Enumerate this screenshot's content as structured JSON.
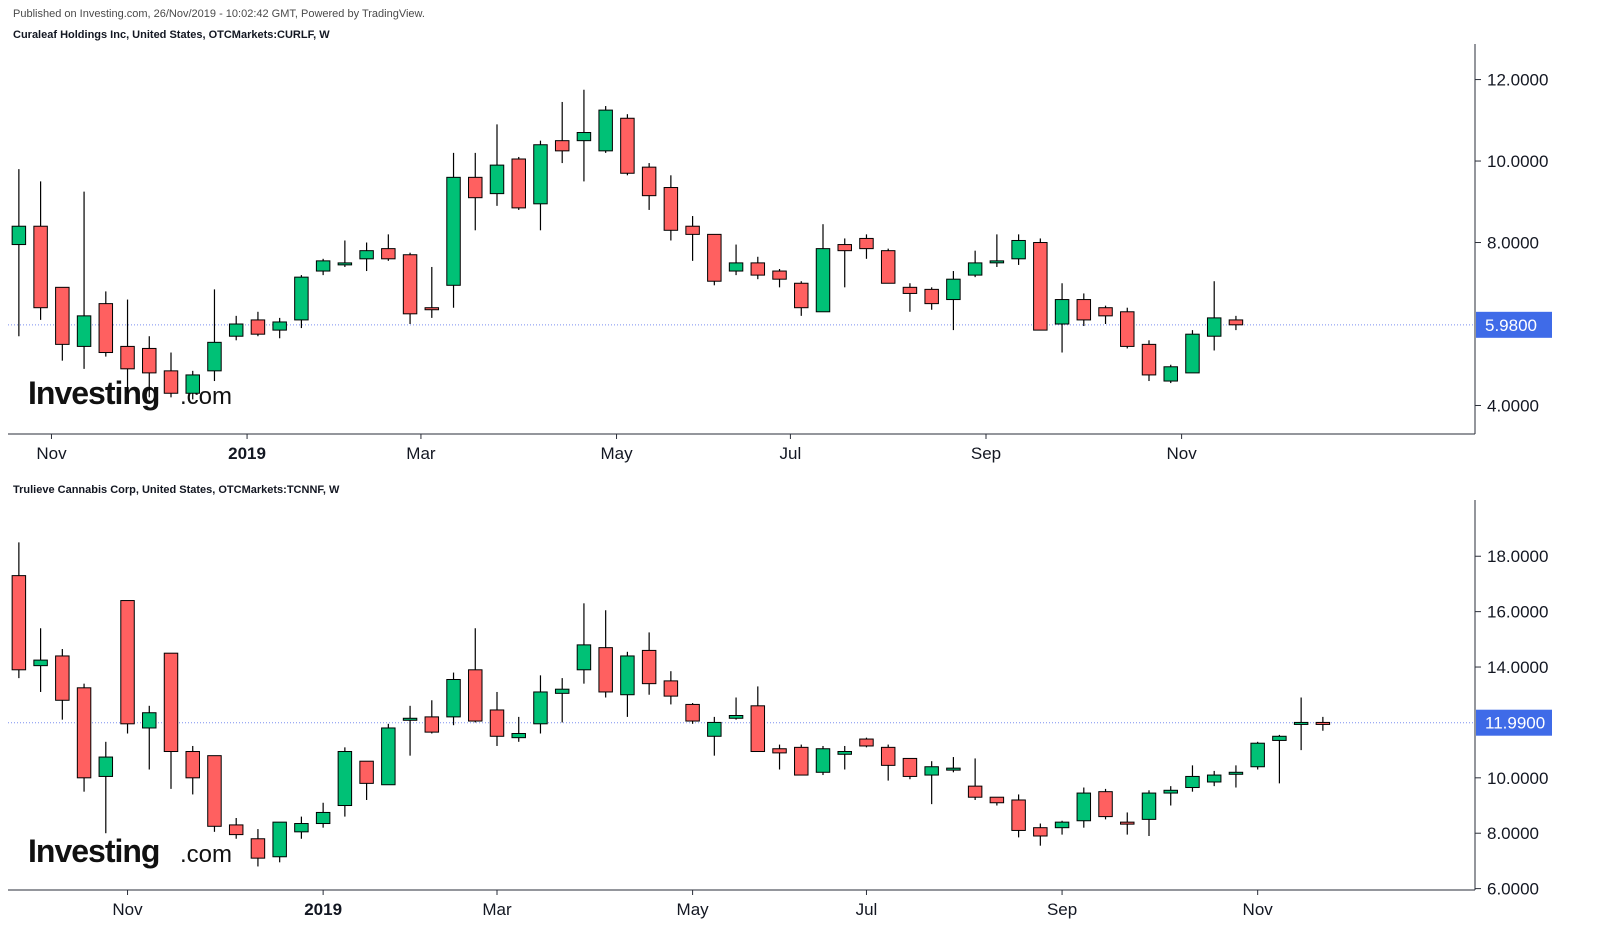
{
  "published": "Published on Investing.com, 26/Nov/2019 - 10:02:42 GMT, Powered by TradingView.",
  "brand": {
    "logo_word": "Investing",
    "logo_suffix": ".com",
    "logo_dot_color": "#f4a91d"
  },
  "colors": {
    "up": "#00c176",
    "down": "#ff6060",
    "wick": "#000000",
    "price_line": "#7b8ff0",
    "price_tag": "#3f6be8"
  },
  "chart_data": [
    {
      "type": "candlestick",
      "title": "Curaleaf Holdings Inc, United States, OTCMarkets:CURLF, W",
      "ylim": [
        3.3,
        12.75
      ],
      "yticks": [
        "4.0000",
        "8.0000",
        "10.0000",
        "12.0000"
      ],
      "ytick_values": [
        4,
        8,
        10,
        12
      ],
      "current_price": 5.98,
      "current_price_label": "5.9800",
      "xlabels": [
        {
          "label": "Nov",
          "index": 1.5,
          "bold": false
        },
        {
          "label": "2019",
          "index": 10.5,
          "bold": true
        },
        {
          "label": "Mar",
          "index": 18.5,
          "bold": false
        },
        {
          "label": "May",
          "index": 27.5,
          "bold": false
        },
        {
          "label": "Jul",
          "index": 35.5,
          "bold": false
        },
        {
          "label": "Sep",
          "index": 44.5,
          "bold": false
        },
        {
          "label": "Nov",
          "index": 53.5,
          "bold": false
        }
      ],
      "x_count": 67.5,
      "candles": [
        {
          "o": 7.95,
          "h": 9.8,
          "l": 5.7,
          "c": 8.4
        },
        {
          "o": 8.4,
          "h": 9.5,
          "l": 6.1,
          "c": 6.4
        },
        {
          "o": 6.9,
          "h": 6.9,
          "l": 5.1,
          "c": 5.5
        },
        {
          "o": 5.45,
          "h": 9.25,
          "l": 4.9,
          "c": 6.2
        },
        {
          "o": 6.5,
          "h": 6.8,
          "l": 5.2,
          "c": 5.3
        },
        {
          "o": 5.45,
          "h": 6.6,
          "l": 4.3,
          "c": 4.9
        },
        {
          "o": 5.4,
          "h": 5.7,
          "l": 4.2,
          "c": 4.8
        },
        {
          "o": 4.85,
          "h": 5.3,
          "l": 4.2,
          "c": 4.3
        },
        {
          "o": 4.3,
          "h": 4.85,
          "l": 4.15,
          "c": 4.75
        },
        {
          "o": 4.85,
          "h": 6.85,
          "l": 4.6,
          "c": 5.55
        },
        {
          "o": 5.7,
          "h": 6.2,
          "l": 5.6,
          "c": 6.0
        },
        {
          "o": 6.1,
          "h": 6.3,
          "l": 5.7,
          "c": 5.75
        },
        {
          "o": 5.85,
          "h": 6.15,
          "l": 5.65,
          "c": 6.05
        },
        {
          "o": 6.1,
          "h": 7.2,
          "l": 5.9,
          "c": 7.15
        },
        {
          "o": 7.3,
          "h": 7.6,
          "l": 7.2,
          "c": 7.55
        },
        {
          "o": 7.5,
          "h": 8.05,
          "l": 7.4,
          "c": 7.5
        },
        {
          "o": 7.6,
          "h": 8.0,
          "l": 7.3,
          "c": 7.8
        },
        {
          "o": 7.85,
          "h": 8.2,
          "l": 7.55,
          "c": 7.6
        },
        {
          "o": 7.7,
          "h": 7.75,
          "l": 6.0,
          "c": 6.25
        },
        {
          "o": 6.4,
          "h": 7.4,
          "l": 6.15,
          "c": 6.35
        },
        {
          "o": 6.95,
          "h": 10.2,
          "l": 6.4,
          "c": 9.6
        },
        {
          "o": 9.6,
          "h": 10.2,
          "l": 8.3,
          "c": 9.1
        },
        {
          "o": 9.2,
          "h": 10.9,
          "l": 8.9,
          "c": 9.9
        },
        {
          "o": 10.05,
          "h": 10.1,
          "l": 8.8,
          "c": 8.85
        },
        {
          "o": 8.95,
          "h": 10.5,
          "l": 8.3,
          "c": 10.4
        },
        {
          "o": 10.5,
          "h": 11.45,
          "l": 9.95,
          "c": 10.25
        },
        {
          "o": 10.5,
          "h": 11.75,
          "l": 9.5,
          "c": 10.7
        },
        {
          "o": 10.25,
          "h": 11.35,
          "l": 10.2,
          "c": 11.25
        },
        {
          "o": 11.05,
          "h": 11.15,
          "l": 9.65,
          "c": 9.7
        },
        {
          "o": 9.85,
          "h": 9.95,
          "l": 8.8,
          "c": 9.15
        },
        {
          "o": 9.35,
          "h": 9.65,
          "l": 8.05,
          "c": 8.3
        },
        {
          "o": 8.4,
          "h": 8.65,
          "l": 7.55,
          "c": 8.2
        },
        {
          "o": 8.2,
          "h": 8.2,
          "l": 6.95,
          "c": 7.05
        },
        {
          "o": 7.3,
          "h": 7.95,
          "l": 7.2,
          "c": 7.5
        },
        {
          "o": 7.5,
          "h": 7.65,
          "l": 7.1,
          "c": 7.2
        },
        {
          "o": 7.3,
          "h": 7.35,
          "l": 6.9,
          "c": 7.1
        },
        {
          "o": 7.0,
          "h": 7.05,
          "l": 6.2,
          "c": 6.4
        },
        {
          "o": 6.3,
          "h": 8.45,
          "l": 6.3,
          "c": 7.85
        },
        {
          "o": 7.95,
          "h": 8.1,
          "l": 6.9,
          "c": 7.8
        },
        {
          "o": 8.1,
          "h": 8.2,
          "l": 7.6,
          "c": 7.85
        },
        {
          "o": 7.8,
          "h": 7.85,
          "l": 7.0,
          "c": 7.0
        },
        {
          "o": 6.9,
          "h": 7.0,
          "l": 6.3,
          "c": 6.75
        },
        {
          "o": 6.85,
          "h": 6.9,
          "l": 6.35,
          "c": 6.5
        },
        {
          "o": 6.6,
          "h": 7.3,
          "l": 5.85,
          "c": 7.1
        },
        {
          "o": 7.2,
          "h": 7.8,
          "l": 7.15,
          "c": 7.5
        },
        {
          "o": 7.55,
          "h": 8.2,
          "l": 7.4,
          "c": 7.55
        },
        {
          "o": 7.6,
          "h": 8.2,
          "l": 7.45,
          "c": 8.05
        },
        {
          "o": 8.0,
          "h": 8.1,
          "l": 5.85,
          "c": 5.85
        },
        {
          "o": 6.0,
          "h": 7.0,
          "l": 5.3,
          "c": 6.6
        },
        {
          "o": 6.6,
          "h": 6.75,
          "l": 5.95,
          "c": 6.1
        },
        {
          "o": 6.4,
          "h": 6.45,
          "l": 6.0,
          "c": 6.2
        },
        {
          "o": 6.3,
          "h": 6.4,
          "l": 5.4,
          "c": 5.45
        },
        {
          "o": 5.5,
          "h": 5.6,
          "l": 4.6,
          "c": 4.75
        },
        {
          "o": 4.6,
          "h": 5.0,
          "l": 4.55,
          "c": 4.95
        },
        {
          "o": 4.8,
          "h": 5.85,
          "l": 4.8,
          "c": 5.75
        },
        {
          "o": 5.7,
          "h": 7.05,
          "l": 5.35,
          "c": 6.15
        },
        {
          "o": 6.1,
          "h": 6.2,
          "l": 5.85,
          "c": 5.98
        }
      ]
    },
    {
      "type": "candlestick",
      "title": "Trulieve Cannabis Corp, United States, OTCMarkets:TCNNF, W",
      "ylim": [
        5.95,
        19.85
      ],
      "yticks": [
        "6.0000",
        "8.0000",
        "10.0000",
        "14.0000",
        "16.0000",
        "18.0000"
      ],
      "ytick_values": [
        6,
        8,
        10,
        14,
        16,
        18
      ],
      "current_price": 11.99,
      "current_price_label": "11.9900",
      "xlabels": [
        {
          "label": "Nov",
          "index": 5.0,
          "bold": false
        },
        {
          "label": "2019",
          "index": 14.0,
          "bold": true
        },
        {
          "label": "Mar",
          "index": 22.0,
          "bold": false
        },
        {
          "label": "May",
          "index": 31.0,
          "bold": false
        },
        {
          "label": "Jul",
          "index": 39.0,
          "bold": false
        },
        {
          "label": "Sep",
          "index": 48.0,
          "bold": false
        },
        {
          "label": "Nov",
          "index": 57.0,
          "bold": false
        }
      ],
      "x_count": 67.5,
      "candles": [
        {
          "o": 17.3,
          "h": 18.5,
          "l": 13.6,
          "c": 13.9
        },
        {
          "o": 14.05,
          "h": 15.4,
          "l": 13.1,
          "c": 14.25
        },
        {
          "o": 14.4,
          "h": 14.65,
          "l": 12.1,
          "c": 12.8
        },
        {
          "o": 13.25,
          "h": 13.4,
          "l": 9.5,
          "c": 10.0
        },
        {
          "o": 10.05,
          "h": 11.3,
          "l": 8.0,
          "c": 10.75
        },
        {
          "o": 16.4,
          "h": 16.4,
          "l": 11.6,
          "c": 11.95
        },
        {
          "o": 11.8,
          "h": 12.6,
          "l": 10.3,
          "c": 12.35
        },
        {
          "o": 14.5,
          "h": 14.5,
          "l": 9.6,
          "c": 10.95
        },
        {
          "o": 10.95,
          "h": 11.15,
          "l": 9.4,
          "c": 10.0
        },
        {
          "o": 10.8,
          "h": 10.8,
          "l": 8.05,
          "c": 8.25
        },
        {
          "o": 8.3,
          "h": 8.55,
          "l": 7.8,
          "c": 7.95
        },
        {
          "o": 7.8,
          "h": 8.15,
          "l": 6.8,
          "c": 7.1
        },
        {
          "o": 7.15,
          "h": 8.4,
          "l": 6.95,
          "c": 8.4
        },
        {
          "o": 8.05,
          "h": 8.6,
          "l": 7.8,
          "c": 8.35
        },
        {
          "o": 8.35,
          "h": 9.1,
          "l": 8.2,
          "c": 8.75
        },
        {
          "o": 9.0,
          "h": 11.1,
          "l": 8.6,
          "c": 10.95
        },
        {
          "o": 10.6,
          "h": 10.6,
          "l": 9.2,
          "c": 9.8
        },
        {
          "o": 9.75,
          "h": 11.95,
          "l": 9.75,
          "c": 11.8
        },
        {
          "o": 12.15,
          "h": 12.6,
          "l": 10.8,
          "c": 12.15
        },
        {
          "o": 12.2,
          "h": 12.8,
          "l": 11.6,
          "c": 11.65
        },
        {
          "o": 12.2,
          "h": 13.8,
          "l": 11.9,
          "c": 13.55
        },
        {
          "o": 13.9,
          "h": 15.4,
          "l": 12.0,
          "c": 12.05
        },
        {
          "o": 12.45,
          "h": 13.1,
          "l": 11.15,
          "c": 11.5
        },
        {
          "o": 11.45,
          "h": 12.2,
          "l": 11.3,
          "c": 11.6
        },
        {
          "o": 11.95,
          "h": 13.7,
          "l": 11.6,
          "c": 13.1
        },
        {
          "o": 13.05,
          "h": 13.6,
          "l": 12.0,
          "c": 13.2
        },
        {
          "o": 13.9,
          "h": 16.3,
          "l": 13.4,
          "c": 14.8
        },
        {
          "o": 14.7,
          "h": 16.05,
          "l": 12.9,
          "c": 13.1
        },
        {
          "o": 13.0,
          "h": 14.55,
          "l": 12.2,
          "c": 14.4
        },
        {
          "o": 14.6,
          "h": 15.25,
          "l": 13.0,
          "c": 13.4
        },
        {
          "o": 13.5,
          "h": 13.85,
          "l": 12.65,
          "c": 12.95
        },
        {
          "o": 12.65,
          "h": 12.7,
          "l": 11.95,
          "c": 12.05
        },
        {
          "o": 11.5,
          "h": 12.2,
          "l": 10.8,
          "c": 12.0
        },
        {
          "o": 12.15,
          "h": 12.9,
          "l": 12.1,
          "c": 12.25
        },
        {
          "o": 12.6,
          "h": 13.3,
          "l": 10.95,
          "c": 10.95
        },
        {
          "o": 11.05,
          "h": 11.2,
          "l": 10.3,
          "c": 10.9
        },
        {
          "o": 11.1,
          "h": 11.2,
          "l": 10.1,
          "c": 10.1
        },
        {
          "o": 10.2,
          "h": 11.15,
          "l": 10.1,
          "c": 11.05
        },
        {
          "o": 10.85,
          "h": 11.15,
          "l": 10.3,
          "c": 10.95
        },
        {
          "o": 11.4,
          "h": 11.45,
          "l": 11.1,
          "c": 11.15
        },
        {
          "o": 11.1,
          "h": 11.2,
          "l": 9.9,
          "c": 10.45
        },
        {
          "o": 10.7,
          "h": 10.7,
          "l": 9.95,
          "c": 10.05
        },
        {
          "o": 10.1,
          "h": 10.6,
          "l": 9.05,
          "c": 10.4
        },
        {
          "o": 10.3,
          "h": 10.75,
          "l": 10.2,
          "c": 10.35
        },
        {
          "o": 9.7,
          "h": 10.7,
          "l": 9.2,
          "c": 9.3
        },
        {
          "o": 9.3,
          "h": 9.3,
          "l": 9.0,
          "c": 9.1
        },
        {
          "o": 9.2,
          "h": 9.4,
          "l": 7.85,
          "c": 8.1
        },
        {
          "o": 8.2,
          "h": 8.35,
          "l": 7.55,
          "c": 7.9
        },
        {
          "o": 8.2,
          "h": 8.45,
          "l": 7.95,
          "c": 8.4
        },
        {
          "o": 8.45,
          "h": 9.65,
          "l": 8.2,
          "c": 9.45
        },
        {
          "o": 9.5,
          "h": 9.6,
          "l": 8.5,
          "c": 8.6
        },
        {
          "o": 8.4,
          "h": 8.75,
          "l": 7.95,
          "c": 8.35
        },
        {
          "o": 8.5,
          "h": 9.55,
          "l": 7.9,
          "c": 9.45
        },
        {
          "o": 9.45,
          "h": 9.7,
          "l": 9.0,
          "c": 9.55
        },
        {
          "o": 9.65,
          "h": 10.45,
          "l": 9.5,
          "c": 10.05
        },
        {
          "o": 9.85,
          "h": 10.25,
          "l": 9.7,
          "c": 10.1
        },
        {
          "o": 10.2,
          "h": 10.45,
          "l": 9.65,
          "c": 10.2
        },
        {
          "o": 10.4,
          "h": 11.3,
          "l": 10.3,
          "c": 11.25
        },
        {
          "o": 11.35,
          "h": 11.55,
          "l": 9.8,
          "c": 11.5
        },
        {
          "o": 12.0,
          "h": 12.9,
          "l": 11.0,
          "c": 12.0
        },
        {
          "o": 12.0,
          "h": 12.2,
          "l": 11.7,
          "c": 11.99
        }
      ]
    }
  ]
}
